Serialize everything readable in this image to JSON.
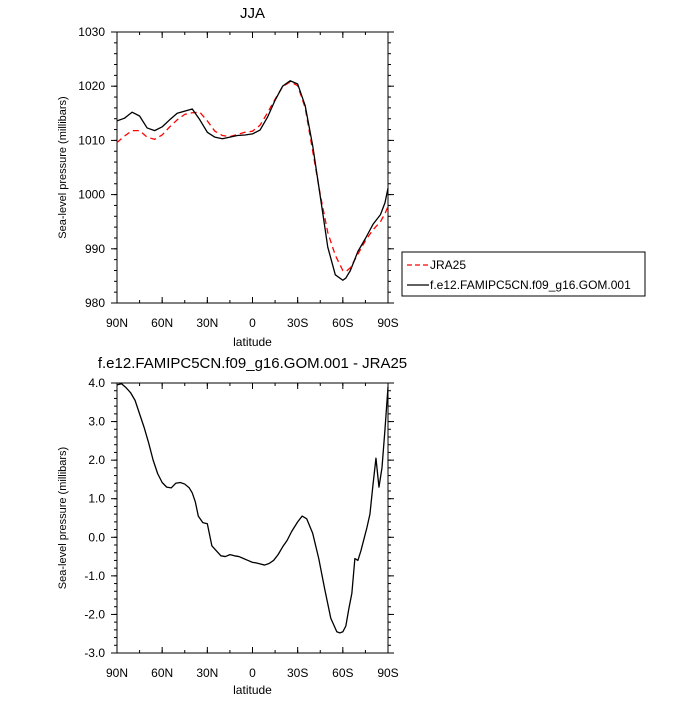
{
  "chart_data": [
    {
      "type": "line",
      "title": "JJA",
      "xlabel": "latitude",
      "ylabel": "Sea-level pressure (millibars)",
      "xlim": [
        -90,
        90
      ],
      "ylim": [
        980,
        1030
      ],
      "x_ticks": [
        -90,
        -60,
        -30,
        0,
        30,
        60,
        90
      ],
      "x_tick_labels": [
        "90N",
        "60N",
        "30N",
        "0",
        "30S",
        "60S",
        "90S"
      ],
      "y_ticks": [
        980,
        990,
        1000,
        1010,
        1020,
        1030
      ],
      "y_tick_labels": [
        "980",
        "990",
        "1000",
        "1010",
        "1020",
        "1030"
      ],
      "legend_position": "right",
      "series": [
        {
          "name": "JRA25",
          "color": "#ff0000",
          "dash": "dashed",
          "x": [
            -90,
            -85,
            -80,
            -75,
            -70,
            -65,
            -60,
            -55,
            -50,
            -45,
            -40,
            -35,
            -30,
            -25,
            -20,
            -15,
            -10,
            -5,
            0,
            5,
            10,
            15,
            20,
            25,
            30,
            35,
            40,
            45,
            50,
            55,
            60,
            62,
            65,
            70,
            75,
            80,
            85,
            88,
            90
          ],
          "y": [
            1009.6,
            1010.8,
            1011.8,
            1011.8,
            1010.6,
            1010.2,
            1011.0,
            1012.5,
            1013.8,
            1014.8,
            1015.1,
            1015.2,
            1013.6,
            1011.7,
            1010.9,
            1010.7,
            1011.1,
            1011.5,
            1011.7,
            1012.8,
            1015.1,
            1017.6,
            1019.9,
            1020.8,
            1020.1,
            1016.0,
            1008.0,
            1000.0,
            993.0,
            988.8,
            986.0,
            985.8,
            986.5,
            989.0,
            991.5,
            993.5,
            995.0,
            996.5,
            997.8
          ]
        },
        {
          "name": "f.e12.FAMIPC5CN.f09_g16.GOM.001",
          "color": "#000000",
          "dash": "solid",
          "x": [
            -90,
            -85,
            -80,
            -75,
            -70,
            -65,
            -60,
            -55,
            -50,
            -45,
            -40,
            -35,
            -30,
            -25,
            -20,
            -15,
            -10,
            -5,
            0,
            5,
            10,
            15,
            20,
            25,
            30,
            35,
            40,
            45,
            50,
            55,
            60,
            62,
            65,
            70,
            75,
            80,
            85,
            88,
            90
          ],
          "y": [
            1013.6,
            1014.1,
            1015.2,
            1014.5,
            1012.3,
            1011.8,
            1012.5,
            1013.8,
            1015.0,
            1015.4,
            1015.8,
            1013.8,
            1011.5,
            1010.6,
            1010.3,
            1010.6,
            1010.9,
            1011.0,
            1011.2,
            1011.9,
            1014.3,
            1017.4,
            1020.0,
            1021.0,
            1020.4,
            1016.4,
            1009.0,
            999.7,
            990.3,
            985.2,
            984.2,
            984.6,
            986.0,
            989.5,
            991.9,
            994.5,
            996.3,
            998.5,
            1001.2
          ]
        }
      ]
    },
    {
      "type": "line",
      "title": "f.e12.FAMIPC5CN.f09_g16.GOM.001 - JRA25",
      "xlabel": "latitude",
      "ylabel": "Sea-level pressure (millibars)",
      "xlim": [
        -90,
        90
      ],
      "ylim": [
        -3.0,
        4.0
      ],
      "x_ticks": [
        -90,
        -60,
        -30,
        0,
        30,
        60,
        90
      ],
      "x_tick_labels": [
        "90N",
        "60N",
        "30N",
        "0",
        "30S",
        "60S",
        "90S"
      ],
      "y_ticks": [
        -3,
        -2,
        -1,
        0,
        1,
        2,
        3,
        4
      ],
      "y_tick_labels": [
        "-3.0",
        "-2.0",
        "-1.0",
        "0.0",
        "1.0",
        "2.0",
        "3.0",
        "4.0"
      ],
      "series": [
        {
          "color": "#000000",
          "dash": "solid",
          "x": [
            -90,
            -87,
            -84,
            -81,
            -78,
            -75,
            -72,
            -69,
            -66,
            -63,
            -60,
            -57,
            -54,
            -51,
            -48,
            -45,
            -42,
            -40,
            -38,
            -36,
            -33,
            -30,
            -27,
            -24,
            -21,
            -18,
            -15,
            -12,
            -9,
            -6,
            -3,
            0,
            2,
            5,
            8,
            11,
            14,
            17,
            20,
            23,
            26,
            30,
            33,
            36,
            40,
            44,
            48,
            52,
            56,
            58,
            60,
            62,
            64,
            66,
            68,
            70,
            72,
            74,
            76,
            78,
            80,
            82,
            84,
            86,
            88,
            90
          ],
          "y": [
            3.95,
            3.98,
            3.88,
            3.75,
            3.55,
            3.2,
            2.85,
            2.45,
            2.0,
            1.65,
            1.42,
            1.3,
            1.28,
            1.4,
            1.42,
            1.38,
            1.28,
            1.15,
            0.92,
            0.55,
            0.38,
            0.35,
            -0.22,
            -0.35,
            -0.48,
            -0.5,
            -0.45,
            -0.48,
            -0.5,
            -0.55,
            -0.6,
            -0.65,
            -0.66,
            -0.69,
            -0.72,
            -0.68,
            -0.6,
            -0.45,
            -0.25,
            -0.08,
            0.15,
            0.4,
            0.55,
            0.48,
            0.1,
            -0.55,
            -1.35,
            -2.1,
            -2.45,
            -2.48,
            -2.45,
            -2.3,
            -1.85,
            -1.45,
            -0.55,
            -0.6,
            -0.35,
            -0.05,
            0.25,
            0.6,
            1.35,
            2.05,
            1.3,
            1.8,
            2.8,
            3.9
          ]
        }
      ]
    }
  ]
}
